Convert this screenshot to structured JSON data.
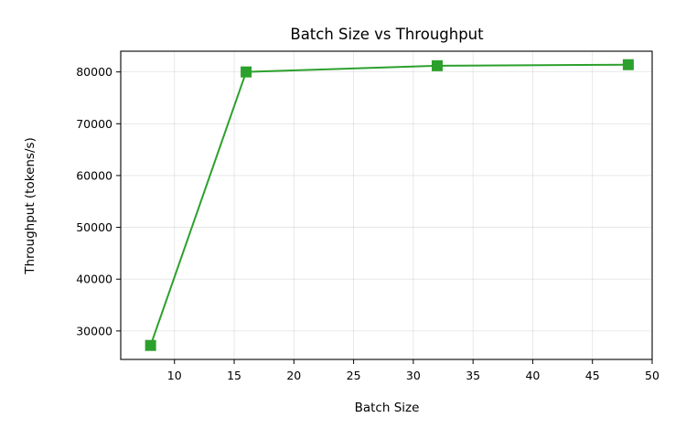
{
  "chart_data": {
    "type": "line",
    "title": "Batch Size vs Throughput",
    "xlabel": "Batch Size",
    "ylabel": "Throughput (tokens/s)",
    "x": [
      8,
      16,
      32,
      48
    ],
    "series": [
      {
        "values": [
          27200,
          80000,
          81200,
          81400
        ],
        "color": "#2ca02c",
        "marker": "square"
      }
    ],
    "xlim": [
      5.5,
      50
    ],
    "ylim": [
      24500,
      84000
    ],
    "xticks": [
      10,
      15,
      20,
      25,
      30,
      35,
      40,
      45,
      50
    ],
    "yticks": [
      30000,
      40000,
      50000,
      60000,
      70000,
      80000
    ],
    "grid": true
  }
}
